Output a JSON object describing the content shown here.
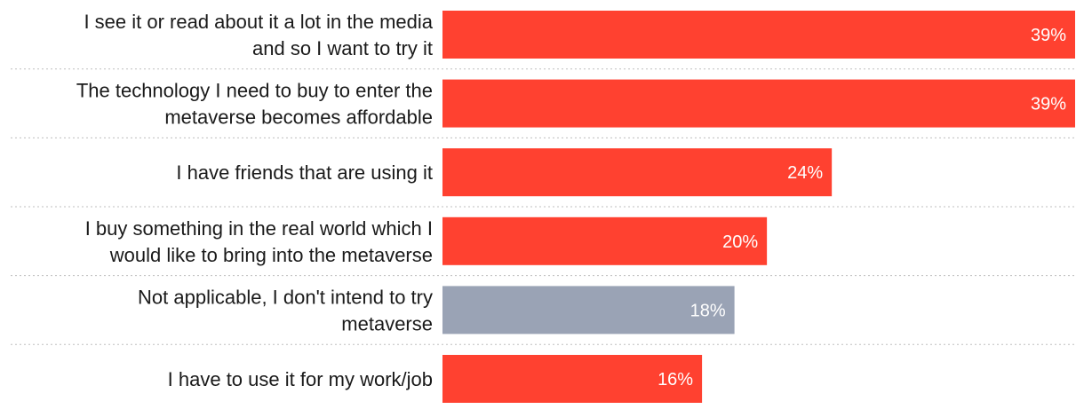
{
  "chart_data": {
    "type": "bar",
    "orientation": "horizontal",
    "categories": [
      [
        "I see it or read about it a lot in the media",
        "and so I want to try it"
      ],
      [
        "The technology I need to buy to enter the",
        "metaverse becomes affordable"
      ],
      [
        "I have friends that are using it"
      ],
      [
        "I buy something in the real world which I",
        "would like to bring into the metaverse"
      ],
      [
        "Not applicable, I don't intend to try",
        "metaverse"
      ],
      [
        "I have to use it for my work/job"
      ]
    ],
    "values": [
      39,
      39,
      24,
      20,
      18,
      16
    ],
    "value_labels": [
      "39%",
      "39%",
      "24%",
      "20%",
      "18%",
      "16%"
    ],
    "bar_colors": [
      "#ff4130",
      "#ff4130",
      "#ff4130",
      "#ff4130",
      "#9aa3b5",
      "#ff4130"
    ],
    "xlim": [
      0,
      39
    ],
    "grid": false,
    "separators": "dotted"
  }
}
